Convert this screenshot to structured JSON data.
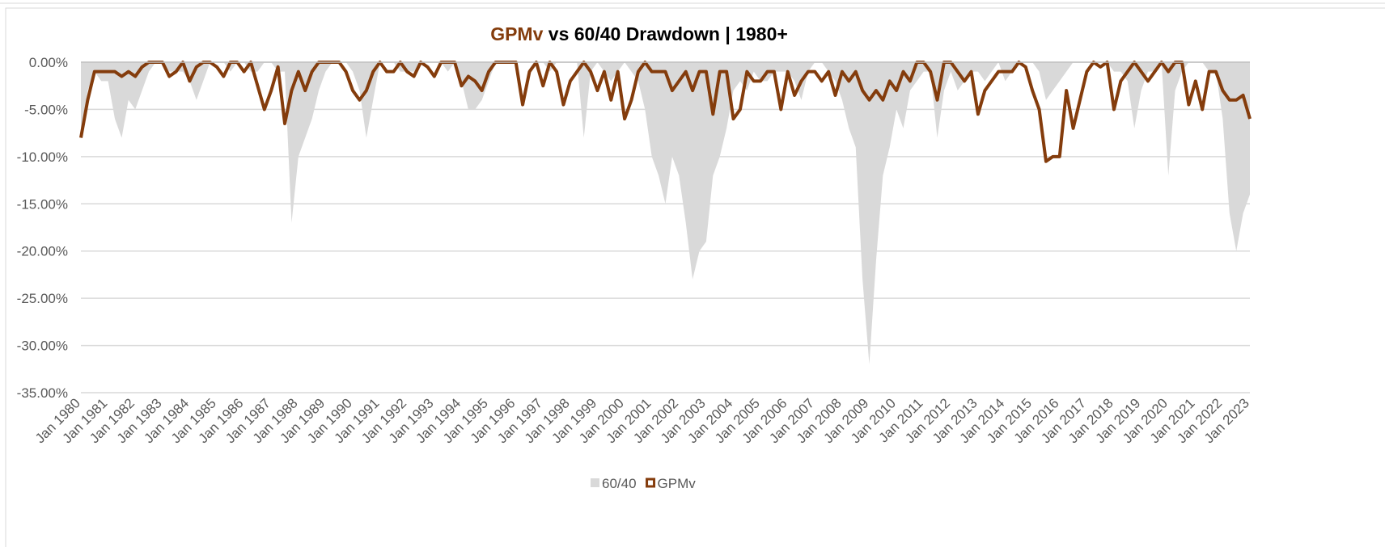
{
  "chart_data": {
    "type": "area_line",
    "title": [
      "GPMv",
      " vs 60/40 Drawdown | 1980+"
    ],
    "title_highlight_color": "#843c0c",
    "categories": [
      "Jan 1980",
      null,
      null,
      null,
      "Jan 1981",
      null,
      null,
      null,
      "Jan 1982",
      null,
      null,
      null,
      "Jan 1983",
      null,
      null,
      null,
      "Jan 1984",
      null,
      null,
      null,
      "Jan 1985",
      null,
      null,
      null,
      "Jan 1986",
      null,
      null,
      null,
      "Jan 1987",
      null,
      null,
      null,
      "Jan 1988",
      null,
      null,
      null,
      "Jan 1989",
      null,
      null,
      null,
      "Jan 1990",
      null,
      null,
      null,
      "Jan 1991",
      null,
      null,
      null,
      "Jan 1992",
      null,
      null,
      null,
      "Jan 1993",
      null,
      null,
      null,
      "Jan 1994",
      null,
      null,
      null,
      "Jan 1995",
      null,
      null,
      null,
      "Jan 1996",
      null,
      null,
      null,
      "Jan 1997",
      null,
      null,
      null,
      "Jan 1998",
      null,
      null,
      null,
      "Jan 1999",
      null,
      null,
      null,
      "Jan 2000",
      null,
      null,
      null,
      "Jan 2001",
      null,
      null,
      null,
      "Jan 2002",
      null,
      null,
      null,
      "Jan 2003",
      null,
      null,
      null,
      "Jan 2004",
      null,
      null,
      null,
      "Jan 2005",
      null,
      null,
      null,
      "Jan 2006",
      null,
      null,
      null,
      "Jan 2007",
      null,
      null,
      null,
      "Jan 2008",
      null,
      null,
      null,
      "Jan 2009",
      null,
      null,
      null,
      "Jan 2010",
      null,
      null,
      null,
      "Jan 2011",
      null,
      null,
      null,
      "Jan 2012",
      null,
      null,
      null,
      "Jan 2013",
      null,
      null,
      null,
      "Jan 2014",
      null,
      null,
      null,
      "Jan 2015",
      null,
      null,
      null,
      "Jan 2016",
      null,
      null,
      null,
      "Jan 2017",
      null,
      null,
      null,
      "Jan 2018",
      null,
      null,
      null,
      "Jan 2019",
      null,
      null,
      null,
      "Jan 2020",
      null,
      null,
      null,
      "Jan 2021",
      null,
      null,
      null,
      "Jan 2022",
      null,
      null,
      null,
      "Jan 2023"
    ],
    "series": [
      {
        "name": "60/40",
        "kind": "area",
        "color": "#d9d9d9",
        "values": [
          -8,
          -3,
          -1,
          -2,
          -2,
          -6,
          -8,
          -4,
          -5,
          -3,
          -1,
          0,
          0,
          -1,
          -1,
          -1,
          -2,
          -4,
          -2,
          0,
          0,
          0,
          -1,
          0,
          0,
          -1,
          -1,
          0,
          0,
          -1,
          -1,
          -17,
          -10,
          -8,
          -6,
          -3,
          -1,
          0,
          0,
          0,
          -1,
          -3,
          -8,
          -4,
          0,
          0,
          0,
          -1,
          -1,
          -1,
          0,
          0,
          0,
          0,
          -1,
          0,
          -2,
          -5,
          -5,
          -4,
          -2,
          0,
          0,
          0,
          0,
          0,
          0,
          0,
          0,
          -1,
          0,
          0,
          0,
          0,
          -8,
          -1,
          0,
          -1,
          -2,
          -1,
          0,
          -1,
          -2,
          -5,
          -10,
          -12,
          -15,
          -10,
          -12,
          -17,
          -23,
          -20,
          -19,
          -12,
          -10,
          -7,
          -3,
          -2,
          -3,
          -1,
          -2,
          -2,
          -1,
          -1,
          -1,
          -2,
          -4,
          -1,
          0,
          0,
          -1,
          -2,
          -4,
          -7,
          -9,
          -23,
          -32,
          -21,
          -12,
          -9,
          -5,
          -7,
          -3,
          -2,
          -1,
          -1,
          -8,
          -3,
          -1,
          -3,
          -2,
          -1,
          -1,
          -2,
          -1,
          0,
          -2,
          -1,
          0,
          0,
          0,
          -1,
          -4,
          -3,
          -2,
          -1,
          0,
          0,
          0,
          0,
          0,
          0,
          -1,
          -1,
          -2,
          -7,
          -3,
          -1,
          -1,
          0,
          -12,
          -3,
          -1,
          0,
          0,
          0,
          -1,
          -1,
          -6,
          -16,
          -20,
          -16,
          -14
        ]
      },
      {
        "name": "GPMv",
        "kind": "line",
        "color": "#843c0c",
        "values": [
          -8,
          -4,
          -1,
          -1,
          -1,
          -1,
          -1.5,
          -1,
          -1.5,
          -0.5,
          0,
          0,
          0,
          -1.5,
          -1,
          0,
          -2,
          -0.5,
          0,
          0,
          -0.5,
          -1.5,
          0,
          0,
          -1,
          0,
          -2.5,
          -5,
          -3,
          -0.5,
          -6.5,
          -3,
          -1,
          -3,
          -1,
          0,
          0,
          0,
          0,
          -1,
          -3,
          -4,
          -3,
          -1,
          0,
          -1,
          -1,
          0,
          -1,
          -1.5,
          0,
          -0.5,
          -1.5,
          0,
          0,
          0,
          -2.5,
          -1.5,
          -2,
          -3,
          -1,
          0,
          0,
          0,
          0,
          -4.5,
          -1,
          0,
          -2.5,
          0,
          -1,
          -4.5,
          -2,
          -1,
          0,
          -1,
          -3,
          -1,
          -4,
          -1,
          -6,
          -4,
          -1,
          0,
          -1,
          -1,
          -1,
          -3,
          -2,
          -1,
          -3,
          -1,
          -1,
          -5.5,
          -1,
          -1,
          -6,
          -5,
          -1,
          -2,
          -2,
          -1,
          -1,
          -5,
          -1,
          -3.5,
          -2,
          -1,
          -1,
          -2,
          -1,
          -3.5,
          -1,
          -2,
          -1,
          -3,
          -4,
          -3,
          -4,
          -2,
          -3,
          -1,
          -2,
          0,
          0,
          -1,
          -4,
          0,
          0,
          -1,
          -2,
          -1,
          -5.5,
          -3,
          -2,
          -1,
          -1,
          -1,
          0,
          -0.5,
          -3,
          -5,
          -10.5,
          -10,
          -10,
          -3,
          -7,
          -4,
          -1,
          0,
          -0.5,
          0,
          -5,
          -2,
          -1,
          0,
          -1,
          -2,
          -1,
          0,
          -1,
          0,
          0,
          -4.5,
          -2,
          -5,
          -1,
          -1,
          -3,
          -4,
          -4,
          -3.5,
          -6
        ]
      }
    ],
    "ylim": [
      -35,
      0
    ],
    "yticks": [
      {
        "value": 0,
        "label": "0.00%"
      },
      {
        "value": -5,
        "label": "-5.00%"
      },
      {
        "value": -10,
        "label": "-10.00%"
      },
      {
        "value": -15,
        "label": "-15.00%"
      },
      {
        "value": -20,
        "label": "-20.00%"
      },
      {
        "value": -25,
        "label": "-25.00%"
      },
      {
        "value": -30,
        "label": "-30.00%"
      },
      {
        "value": -35,
        "label": "-35.00%"
      }
    ],
    "grid": true,
    "legend": "bottom"
  }
}
